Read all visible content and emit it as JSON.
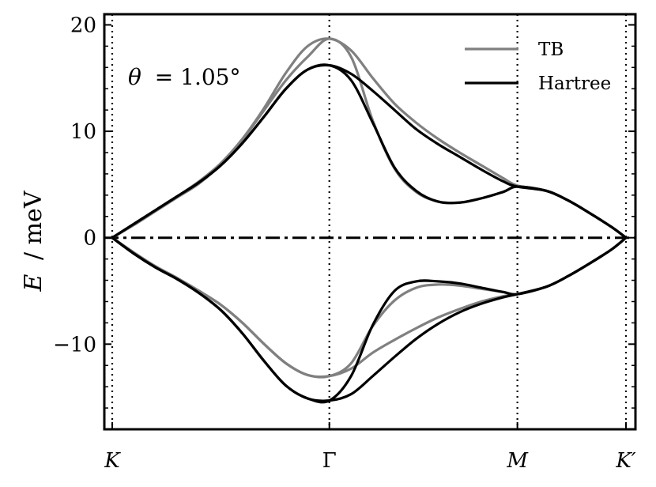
{
  "chart_data": {
    "type": "line",
    "title": "",
    "xlabel": "",
    "ylabel_math": "E",
    "ylabel_unit": "/ meV",
    "annotation_math": "θ",
    "annotation_value": "= 1.05°",
    "ylim": [
      -18,
      21
    ],
    "y_ticks": [
      -10,
      0,
      10,
      20
    ],
    "y_tick_labels": [
      "−10",
      "0",
      "10",
      "20"
    ],
    "x_ticks": [
      {
        "label": "K",
        "pos": 0.0
      },
      {
        "label": "Γ",
        "pos": 1.0
      },
      {
        "label": "M",
        "pos": 1.866
      },
      {
        "label": "K′",
        "pos": 2.366
      }
    ],
    "grid": false,
    "legend_placement": "top-right",
    "zero_line": true,
    "series": [
      {
        "name": "TB",
        "color": "#808080",
        "bands": [
          {
            "x": [
              0,
              0.1,
              0.2,
              0.3,
              0.4,
              0.5,
              0.6,
              0.7,
              0.8,
              0.9,
              1.0,
              1.1,
              1.2,
              1.3,
              1.4,
              1.5,
              1.6,
              1.7,
              1.8,
              1.866,
              2.0,
              2.1,
              2.2,
              2.3,
              2.366
            ],
            "y": [
              0,
              1.3,
              2.6,
              3.9,
              5.3,
              7.0,
              9.3,
              12.2,
              15.5,
              18.0,
              18.7,
              17.6,
              15.0,
              12.6,
              10.8,
              9.3,
              8.0,
              6.8,
              5.6,
              4.9,
              4.4,
              3.5,
              2.3,
              1.0,
              0
            ]
          },
          {
            "x": [
              0,
              0.1,
              0.2,
              0.3,
              0.4,
              0.5,
              0.6,
              0.7,
              0.8,
              0.9,
              1.0,
              1.1,
              1.2,
              1.3,
              1.4,
              1.5,
              1.6,
              1.7,
              1.8,
              1.866,
              2.0,
              2.1,
              2.2,
              2.3,
              2.366
            ],
            "y": [
              0,
              1.2,
              2.5,
              3.8,
              5.1,
              6.9,
              9.2,
              12.0,
              14.8,
              17.0,
              18.7,
              17.0,
              11.0,
              6.5,
              4.3,
              3.4,
              3.3,
              3.7,
              4.3,
              4.8,
              4.4,
              3.5,
              2.3,
              1.0,
              0
            ]
          },
          {
            "x": [
              0,
              0.1,
              0.2,
              0.3,
              0.4,
              0.5,
              0.6,
              0.7,
              0.8,
              0.9,
              1.0,
              1.1,
              1.2,
              1.3,
              1.4,
              1.5,
              1.6,
              1.7,
              1.8,
              1.866,
              2.0,
              2.1,
              2.2,
              2.3,
              2.366
            ],
            "y": [
              0,
              -1.4,
              -2.7,
              -3.8,
              -5.0,
              -6.3,
              -8.0,
              -10.0,
              -11.8,
              -12.9,
              -13.0,
              -12.3,
              -10.8,
              -9.6,
              -8.5,
              -7.5,
              -6.7,
              -6.0,
              -5.5,
              -5.3,
              -4.6,
              -3.6,
              -2.4,
              -1.1,
              0
            ]
          },
          {
            "x": [
              0,
              0.1,
              0.2,
              0.3,
              0.4,
              0.5,
              0.6,
              0.7,
              0.8,
              0.9,
              1.0,
              1.1,
              1.2,
              1.3,
              1.4,
              1.5,
              1.6,
              1.7,
              1.8,
              1.866,
              2.0,
              2.1,
              2.2,
              2.3,
              2.366
            ],
            "y": [
              0,
              -1.4,
              -2.7,
              -3.8,
              -5.0,
              -6.3,
              -8.0,
              -10.0,
              -11.8,
              -12.9,
              -13.0,
              -11.8,
              -8.3,
              -5.9,
              -4.7,
              -4.4,
              -4.5,
              -4.8,
              -5.1,
              -5.3,
              -4.6,
              -3.6,
              -2.4,
              -1.1,
              0
            ]
          }
        ]
      },
      {
        "name": "Hartree",
        "color": "#000000",
        "bands": [
          {
            "x": [
              0,
              0.1,
              0.2,
              0.3,
              0.4,
              0.5,
              0.6,
              0.7,
              0.8,
              0.9,
              1.0,
              1.1,
              1.2,
              1.3,
              1.4,
              1.5,
              1.6,
              1.7,
              1.8,
              1.866,
              2.0,
              2.1,
              2.2,
              2.3,
              2.366
            ],
            "y": [
              0,
              1.3,
              2.6,
              3.9,
              5.2,
              6.8,
              8.9,
              11.4,
              14.0,
              15.8,
              16.2,
              15.4,
              13.8,
              12.0,
              10.2,
              8.8,
              7.6,
              6.4,
              5.3,
              4.8,
              4.4,
              3.5,
              2.3,
              1.0,
              0
            ]
          },
          {
            "x": [
              0,
              0.1,
              0.2,
              0.3,
              0.4,
              0.5,
              0.6,
              0.7,
              0.8,
              0.9,
              1.0,
              1.1,
              1.2,
              1.3,
              1.4,
              1.5,
              1.6,
              1.7,
              1.8,
              1.866,
              2.0,
              2.1,
              2.2,
              2.3,
              2.366
            ],
            "y": [
              0,
              1.3,
              2.6,
              3.9,
              5.2,
              6.8,
              8.9,
              11.4,
              14.0,
              15.8,
              16.2,
              14.8,
              10.8,
              6.6,
              4.4,
              3.4,
              3.3,
              3.7,
              4.3,
              4.8,
              4.4,
              3.5,
              2.3,
              1.0,
              0
            ]
          },
          {
            "x": [
              0,
              0.1,
              0.2,
              0.3,
              0.4,
              0.5,
              0.6,
              0.7,
              0.8,
              0.9,
              1.0,
              1.1,
              1.2,
              1.3,
              1.4,
              1.5,
              1.6,
              1.7,
              1.8,
              1.866,
              2.0,
              2.1,
              2.2,
              2.3,
              2.366
            ],
            "y": [
              0,
              -1.5,
              -2.8,
              -3.9,
              -5.2,
              -6.8,
              -9.0,
              -11.6,
              -13.9,
              -15.1,
              -15.3,
              -14.7,
              -13.0,
              -11.2,
              -9.5,
              -8.1,
              -7.0,
              -6.2,
              -5.6,
              -5.3,
              -4.6,
              -3.6,
              -2.4,
              -1.1,
              0
            ]
          },
          {
            "x": [
              0,
              0.1,
              0.2,
              0.3,
              0.4,
              0.5,
              0.6,
              0.7,
              0.8,
              0.9,
              1.0,
              1.1,
              1.2,
              1.3,
              1.4,
              1.5,
              1.6,
              1.7,
              1.8,
              1.866,
              2.0,
              2.1,
              2.2,
              2.3,
              2.366
            ],
            "y": [
              0,
              -1.5,
              -2.8,
              -3.9,
              -5.2,
              -6.8,
              -9.0,
              -11.6,
              -13.9,
              -15.1,
              -15.3,
              -13.0,
              -8.2,
              -5.0,
              -4.1,
              -4.1,
              -4.3,
              -4.7,
              -5.1,
              -5.3,
              -4.6,
              -3.6,
              -2.4,
              -1.1,
              0
            ]
          }
        ]
      }
    ]
  }
}
